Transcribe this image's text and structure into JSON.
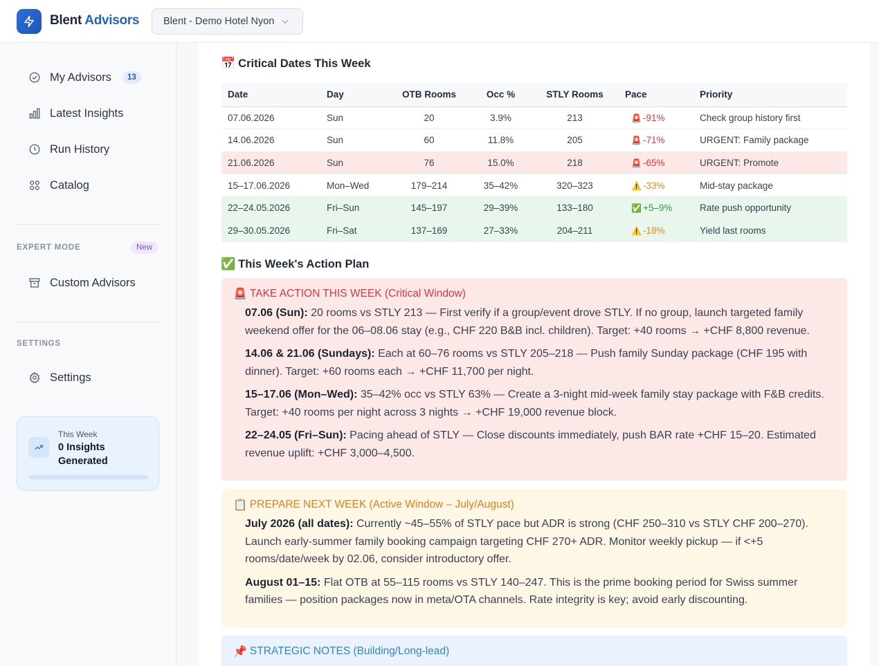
{
  "app": {
    "brand_part1": "Blent",
    "brand_part2": "Advisors",
    "hotel_selector": "Blent - Demo Hotel Nyon"
  },
  "sidebar": {
    "items": [
      {
        "label": "My Advisors",
        "badge": "13",
        "icon": "check-circle-icon"
      },
      {
        "label": "Latest Insights",
        "icon": "bar-chart-icon"
      },
      {
        "label": "Run History",
        "icon": "clock-icon"
      },
      {
        "label": "Catalog",
        "icon": "grid-icon"
      }
    ],
    "expert_mode": {
      "label": "EXPERT MODE",
      "pill": "New",
      "item": "Custom Advisors"
    },
    "settings": {
      "label": "SETTINGS",
      "item": "Settings"
    },
    "week_card": {
      "label": "This Week",
      "value": "0 Insights Generated",
      "progress": 0
    }
  },
  "critical": {
    "title": "Critical Dates This Week",
    "emoji": "📅",
    "headers": [
      "Date",
      "Day",
      "OTB Rooms",
      "Occ %",
      "STLY Rooms",
      "Pace",
      "Priority"
    ],
    "rows": [
      {
        "date": "07.06.2026",
        "day": "Sun",
        "otb": "20",
        "occ": "3.9%",
        "stly": "213",
        "pace_icon": "🚨",
        "pace": "-91%",
        "pace_class": "red",
        "priority": "Check group history first",
        "row_class": ""
      },
      {
        "date": "14.06.2026",
        "day": "Sun",
        "otb": "60",
        "occ": "11.8%",
        "stly": "205",
        "pace_icon": "🚨",
        "pace": "-71%",
        "pace_class": "red",
        "priority": "URGENT: Family package",
        "row_class": ""
      },
      {
        "date": "21.06.2026",
        "day": "Sun",
        "otb": "76",
        "occ": "15.0%",
        "stly": "218",
        "pace_icon": "🚨",
        "pace": "-65%",
        "pace_class": "red",
        "priority": "URGENT: Promote",
        "row_class": "red"
      },
      {
        "date": "15–17.06.2026",
        "day": "Mon–Wed",
        "otb": "179–214",
        "occ": "35–42%",
        "stly": "320–323",
        "pace_icon": "⚠️",
        "pace": "-33%",
        "pace_class": "orange",
        "priority": "Mid-stay package",
        "row_class": ""
      },
      {
        "date": "22–24.05.2026",
        "day": "Fri–Sun",
        "otb": "145–197",
        "occ": "29–39%",
        "stly": "133–180",
        "pace_icon": "✅",
        "pace": "+5–9%",
        "pace_class": "green",
        "priority": "Rate push opportunity",
        "row_class": "green"
      },
      {
        "date": "29–30.05.2026",
        "day": "Fri–Sat",
        "otb": "137–169",
        "occ": "27–33%",
        "stly": "204–211",
        "pace_icon": "⚠️",
        "pace": "-18%",
        "pace_class": "orange",
        "priority": "Yield last rooms",
        "row_class": "green"
      }
    ]
  },
  "action_plan": {
    "title": "This Week's Action Plan",
    "emoji": "✅",
    "take_action": {
      "emoji": "🚨",
      "title": "TAKE ACTION THIS WEEK (Critical Window)",
      "items": [
        {
          "lead": "07.06 (Sun):",
          "text": " 20 rooms vs STLY 213 — First verify if a group/event drove STLY. If no group, launch targeted family weekend offer for the 06–08.06 stay (e.g., CHF 220 B&B incl. children). Target: +40 rooms → +CHF 8,800 revenue."
        },
        {
          "lead": "14.06 & 21.06 (Sundays):",
          "text": " Each at 60–76 rooms vs STLY 205–218 — Push family Sunday package (CHF 195 with dinner). Target: +60 rooms each → +CHF 11,700 per night."
        },
        {
          "lead": "15–17.06 (Mon–Wed):",
          "text": " 35–42% occ vs STLY 63% — Create a 3-night mid-week family stay package with F&B credits. Target: +40 rooms per night across 3 nights → +CHF 19,000 revenue block."
        },
        {
          "lead": "22–24.05 (Fri–Sun):",
          "text": " Pacing ahead of STLY — Close discounts immediately, push BAR rate +CHF 15–20. Estimated revenue uplift: +CHF 3,000–4,500."
        }
      ]
    },
    "prepare": {
      "emoji": "📋",
      "title": "PREPARE NEXT WEEK (Active Window – July/August)",
      "items": [
        {
          "lead": "July 2026 (all dates):",
          "text": " Currently ~45–55% of STLY pace but ADR is strong (CHF 250–310 vs STLY CHF 200–270). Launch early-summer family booking campaign targeting CHF 270+ ADR. Monitor weekly pickup — if <+5 rooms/date/week by 02.06, consider introductory offer."
        },
        {
          "lead": "August 01–15:",
          "text": " Flat OTB at 55–115 rooms vs STLY 140–247. This is the prime booking period for Swiss summer families — position packages now in meta/OTA channels. Rate integrity is key; avoid early discounting."
        }
      ]
    },
    "strategic": {
      "emoji": "📌",
      "title": "STRATEGIC NOTES (Building/Long-lead)"
    }
  }
}
